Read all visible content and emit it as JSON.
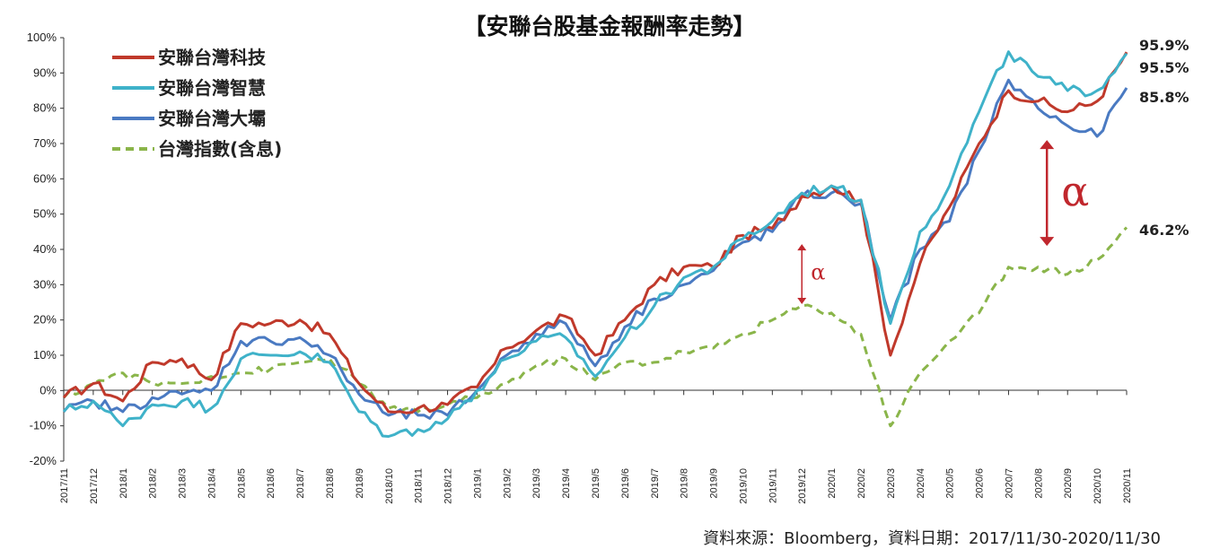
{
  "chart_data": {
    "type": "line",
    "title": "【安聯台股基金報酬率走勢】",
    "source": "資料來源：Bloomberg，資料日期：2017/11/30-2020/11/30",
    "ylim": [
      -20,
      100
    ],
    "yticks": [
      "-20%",
      "-10%",
      "0%",
      "10%",
      "20%",
      "30%",
      "40%",
      "50%",
      "60%",
      "70%",
      "80%",
      "90%",
      "100%"
    ],
    "xticks": [
      "2017/11",
      "2017/12",
      "2018/1",
      "2018/2",
      "2018/3",
      "2018/4",
      "2018/5",
      "2018/6",
      "2018/7",
      "2018/8",
      "2018/9",
      "2018/10",
      "2018/11",
      "2018/12",
      "2019/1",
      "2019/2",
      "2019/3",
      "2019/4",
      "2019/5",
      "2019/6",
      "2019/7",
      "2019/8",
      "2019/9",
      "2019/10",
      "2019/11",
      "2019/12",
      "2020/1",
      "2020/2",
      "2020/3",
      "2020/4",
      "2020/5",
      "2020/6",
      "2020/7",
      "2020/8",
      "2020/9",
      "2020/10",
      "2020/11"
    ],
    "legend_position": "top-left",
    "grid": false,
    "series": [
      {
        "name": "安聯台灣科技",
        "color": "#c0392b",
        "dashed": false,
        "end_label": "95.9%",
        "values": [
          -2,
          2,
          -3,
          8,
          9,
          3,
          19,
          19,
          20,
          16,
          2,
          -6,
          -5,
          -4,
          1,
          12,
          17,
          21,
          10,
          20,
          30,
          35,
          35,
          44,
          46,
          55,
          58,
          54,
          10,
          36,
          52,
          70,
          85,
          82,
          79,
          82,
          95.9
        ]
      },
      {
        "name": "安聯台灣智慧",
        "color": "#3fb2c9",
        "dashed": false,
        "end_label": "95.5%",
        "values": [
          -6,
          -3,
          -10,
          -4,
          -3,
          -5,
          9,
          10,
          11,
          8,
          -6,
          -13,
          -11,
          -8,
          0,
          9,
          14,
          15,
          4,
          15,
          24,
          32,
          35,
          43,
          48,
          56,
          58,
          54,
          19,
          45,
          58,
          79,
          96,
          89,
          85,
          85,
          95.5
        ]
      },
      {
        "name": "安聯台灣大壩",
        "color": "#4a7ac2",
        "dashed": false,
        "end_label": "85.8%",
        "values": [
          -6,
          -3,
          -6,
          -2,
          -1,
          0,
          14,
          14,
          15,
          10,
          -1,
          -7,
          -7,
          -7,
          0,
          10,
          16,
          19,
          7,
          18,
          26,
          30,
          34,
          42,
          45,
          55,
          56,
          53,
          20,
          40,
          48,
          68,
          88,
          80,
          75,
          72,
          85.8
        ]
      },
      {
        "name": "台灣指數(含息)",
        "color": "#8ab54a",
        "dashed": true,
        "end_label": "46.2%",
        "values": [
          -2,
          2,
          5,
          2,
          2,
          4,
          5,
          6,
          8,
          9,
          2,
          -5,
          -6,
          -4,
          -2,
          2,
          7,
          9,
          3,
          8,
          8,
          11,
          12,
          16,
          20,
          24,
          22,
          16,
          -10,
          5,
          14,
          22,
          35,
          35,
          33,
          37,
          46.2
        ]
      }
    ],
    "annotations": [
      {
        "text": "α",
        "from": 41.5,
        "to": 24.5,
        "x_index": 25
      },
      {
        "text": "α",
        "from": 71,
        "to": 41,
        "x_index": 33.3
      }
    ]
  }
}
